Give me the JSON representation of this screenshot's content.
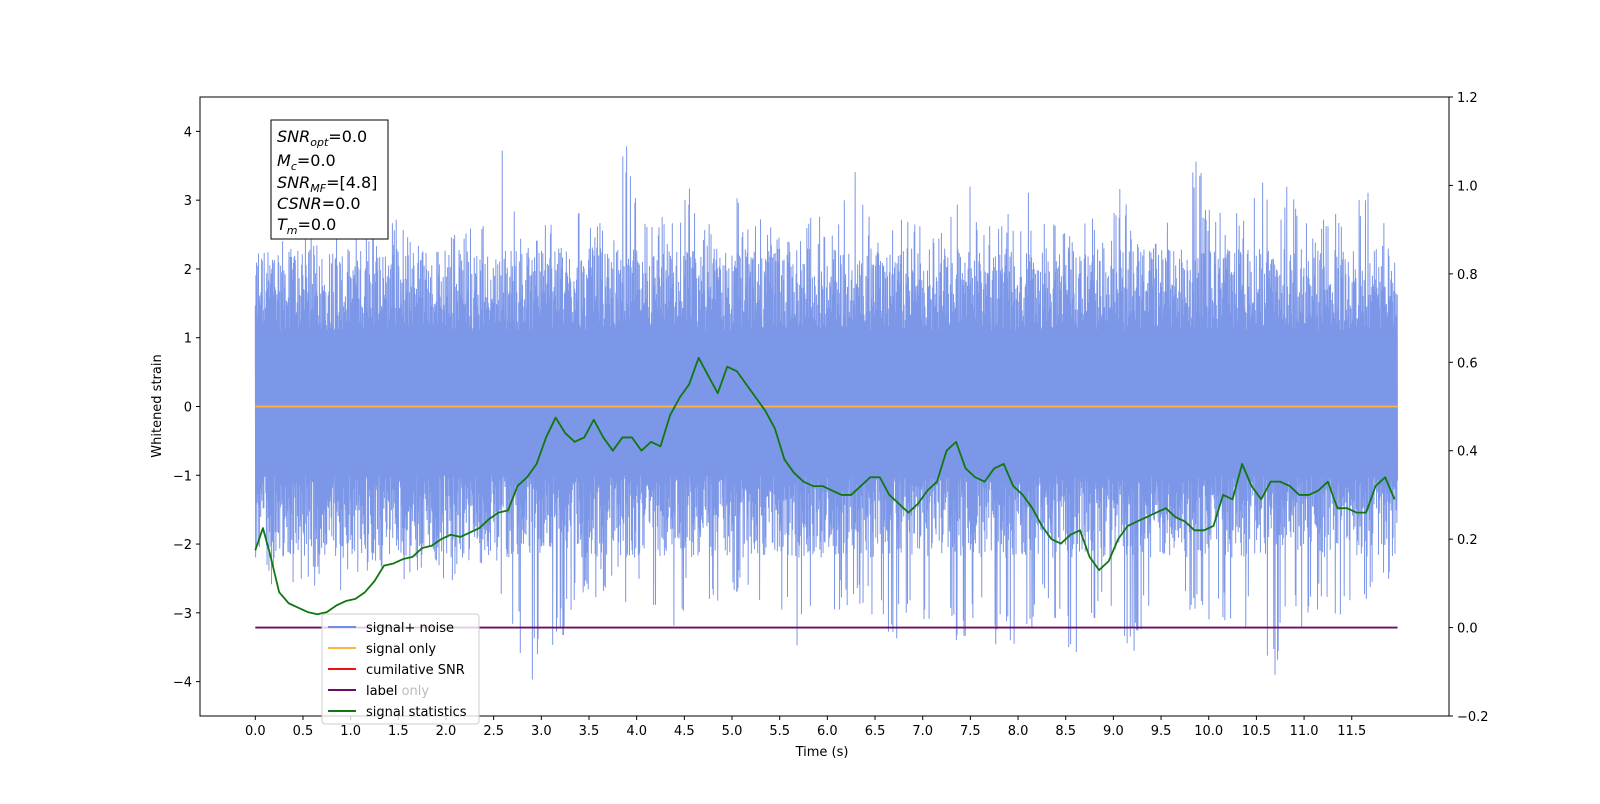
{
  "chart_data": {
    "type": "line",
    "xlabel": "Time (s)",
    "ylabel": "Whitened strain",
    "xlim": [
      -0.58,
      12.52
    ],
    "ylim": [
      -4.5,
      4.5
    ],
    "y2lim": [
      -0.2,
      1.2
    ],
    "x_ticks": [
      0.0,
      0.5,
      1.0,
      1.5,
      2.0,
      2.5,
      3.0,
      3.5,
      4.0,
      4.5,
      5.0,
      5.5,
      6.0,
      6.5,
      7.0,
      7.5,
      8.0,
      8.5,
      9.0,
      9.5,
      10.0,
      10.5,
      11.0,
      11.5
    ],
    "x_tick_labels": [
      "0.0",
      "0.5",
      "1.0",
      "1.5",
      "2.0",
      "2.5",
      "3.0",
      "3.5",
      "4.0",
      "4.5",
      "5.0",
      "5.5",
      "6.0",
      "6.5",
      "7.0",
      "7.5",
      "8.0",
      "8.5",
      "9.0",
      "9.5",
      "10.0",
      "10.5",
      "11.0",
      "11.5"
    ],
    "y_ticks": [
      -4,
      -3,
      -2,
      -1,
      0,
      1,
      2,
      3,
      4
    ],
    "y_tick_labels": [
      "−4",
      "−3",
      "−2",
      "−1",
      "0",
      "1",
      "2",
      "3",
      "4"
    ],
    "y2_ticks": [
      -0.2,
      0.0,
      0.2,
      0.4,
      0.6,
      0.8,
      1.0,
      1.2
    ],
    "y2_tick_labels": [
      "−0.2",
      "0.0",
      "0.2",
      "0.4",
      "0.6",
      "0.8",
      "1.0",
      "1.2"
    ],
    "annotation": {
      "lines": [
        {
          "main": "SNR",
          "sub": "opt",
          "value": "=0.0"
        },
        {
          "main": "M",
          "sub": "c",
          "value": "=0.0"
        },
        {
          "main": "SNR",
          "sub": "MF",
          "value": "=[4.8]"
        },
        {
          "main": "CSNR",
          "sub": "",
          "value": "=0.0"
        },
        {
          "main": "T",
          "sub": "m",
          "value": "=0.0"
        }
      ]
    },
    "legend": {
      "placement": "lower-left",
      "entries": [
        {
          "label": "signal+ noise",
          "color": "#6f8ce6"
        },
        {
          "label": "signal only",
          "color": "#ffb340"
        },
        {
          "label": "cumilative SNR",
          "color": "#ee1111"
        },
        {
          "label": "label",
          "color": "#6b0c6b"
        },
        {
          "label": "signal statistics",
          "color": "#117711"
        }
      ],
      "hidden_text": [
        "label only"
      ]
    },
    "series": [
      {
        "name": "signal+ noise",
        "axis": "left",
        "color": "#6f8ce6",
        "x_range": [
          0.0,
          11.98
        ],
        "envelope_upper": [
          2.5,
          2.3,
          2.5,
          2.6,
          2.7,
          2.5,
          2.7,
          2.9,
          2.6,
          2.8,
          2.6,
          2.5,
          2.7,
          2.5,
          2.8,
          2.9,
          3.9,
          2.7,
          2.6,
          2.8,
          2.5,
          2.9,
          2.8,
          2.6,
          4.05,
          2.7,
          2.8,
          2.8,
          3.3,
          2.9,
          2.6,
          3.1,
          2.9,
          2.7,
          2.6,
          2.7,
          2.9,
          2.8,
          2.9,
          3.6,
          2.7,
          2.5,
          3.3,
          2.8,
          2.6,
          2.9,
          3.95,
          2.8,
          2.6,
          2.9,
          3.2,
          2.8,
          2.8,
          2.7,
          3.3,
          2.7,
          3.2,
          2.8,
          2.6,
          2.7,
          2.8,
          3.7,
          2.7,
          3.0,
          2.7,
          3.5,
          2.8,
          3.3,
          3.1,
          2.7,
          3.2,
          2.8,
          3.3,
          2.7,
          2.6
        ],
        "envelope_lower": [
          -2.2,
          -2.6,
          -2.9,
          -2.5,
          -2.8,
          -3.0,
          -2.7,
          -2.5,
          -2.4,
          -2.6,
          -2.6,
          -2.3,
          -2.5,
          -2.7,
          -2.6,
          -2.6,
          -2.8,
          -3.6,
          -4.0,
          -3.6,
          -3.4,
          -2.9,
          -2.8,
          -2.7,
          -2.9,
          -2.8,
          -3.0,
          -3.6,
          -2.8,
          -2.9,
          -3.0,
          -2.7,
          -3.1,
          -3.3,
          -3.2,
          -3.5,
          -3.4,
          -3.3,
          -3.0,
          -2.9,
          -3.1,
          -3.5,
          -3.3,
          -3.4,
          -3.0,
          -3.2,
          -3.8,
          -3.0,
          -3.6,
          -3.5,
          -3.3,
          -3.0,
          -3.1,
          -3.7,
          -3.2,
          -3.3,
          -3.3,
          -3.6,
          -3.0,
          -3.2,
          -3.1,
          -3.2,
          -3.6,
          -3.1,
          -3.3,
          -3.2,
          -4.1,
          -3.2,
          -3.4,
          -2.9,
          -3.2,
          -3.0,
          -2.9,
          -2.7,
          -2.6
        ]
      },
      {
        "name": "signal only",
        "axis": "left",
        "color": "#ffb340",
        "x": [
          0.0,
          11.98
        ],
        "y": [
          0.0,
          0.0
        ]
      },
      {
        "name": "label",
        "axis": "right",
        "color": "#6b0c6b",
        "x": [
          0.0,
          11.98
        ],
        "y": [
          0.0,
          0.0
        ]
      },
      {
        "name": "signal statistics",
        "axis": "right",
        "color": "#117711",
        "x": [
          0.0,
          0.08,
          0.15,
          0.25,
          0.35,
          0.45,
          0.55,
          0.65,
          0.75,
          0.85,
          0.95,
          1.05,
          1.15,
          1.25,
          1.35,
          1.45,
          1.55,
          1.65,
          1.75,
          1.85,
          1.95,
          2.05,
          2.15,
          2.25,
          2.35,
          2.45,
          2.55,
          2.65,
          2.75,
          2.85,
          2.95,
          3.05,
          3.15,
          3.25,
          3.35,
          3.45,
          3.55,
          3.65,
          3.75,
          3.85,
          3.95,
          4.05,
          4.15,
          4.25,
          4.35,
          4.45,
          4.55,
          4.65,
          4.75,
          4.85,
          4.95,
          5.05,
          5.15,
          5.25,
          5.35,
          5.45,
          5.55,
          5.65,
          5.75,
          5.85,
          5.95,
          6.05,
          6.15,
          6.25,
          6.35,
          6.45,
          6.55,
          6.65,
          6.75,
          6.85,
          6.95,
          7.05,
          7.15,
          7.25,
          7.35,
          7.45,
          7.55,
          7.65,
          7.75,
          7.85,
          7.95,
          8.05,
          8.15,
          8.25,
          8.35,
          8.45,
          8.55,
          8.65,
          8.75,
          8.85,
          8.95,
          9.05,
          9.15,
          9.25,
          9.35,
          9.45,
          9.55,
          9.65,
          9.75,
          9.85,
          9.95,
          10.05,
          10.15,
          10.25,
          10.35,
          10.45,
          10.55,
          10.65,
          10.75,
          10.85,
          10.95,
          11.05,
          11.15,
          11.25,
          11.35,
          11.45,
          11.55,
          11.65,
          11.75,
          11.85,
          11.95
        ],
        "y": [
          0.175,
          0.225,
          0.17,
          0.08,
          0.055,
          0.045,
          0.035,
          0.03,
          0.035,
          0.05,
          0.06,
          0.065,
          0.08,
          0.105,
          0.14,
          0.145,
          0.155,
          0.16,
          0.18,
          0.185,
          0.2,
          0.21,
          0.205,
          0.215,
          0.225,
          0.245,
          0.26,
          0.265,
          0.32,
          0.34,
          0.37,
          0.43,
          0.475,
          0.44,
          0.42,
          0.43,
          0.47,
          0.43,
          0.4,
          0.43,
          0.43,
          0.4,
          0.42,
          0.41,
          0.48,
          0.52,
          0.55,
          0.61,
          0.57,
          0.53,
          0.59,
          0.58,
          0.55,
          0.52,
          0.49,
          0.45,
          0.38,
          0.35,
          0.33,
          0.32,
          0.32,
          0.31,
          0.3,
          0.3,
          0.32,
          0.34,
          0.34,
          0.3,
          0.28,
          0.26,
          0.28,
          0.31,
          0.33,
          0.4,
          0.42,
          0.36,
          0.34,
          0.33,
          0.36,
          0.37,
          0.32,
          0.3,
          0.27,
          0.23,
          0.2,
          0.19,
          0.21,
          0.22,
          0.16,
          0.13,
          0.15,
          0.2,
          0.23,
          0.24,
          0.25,
          0.26,
          0.27,
          0.25,
          0.24,
          0.22,
          0.22,
          0.23,
          0.3,
          0.29,
          0.37,
          0.32,
          0.29,
          0.33,
          0.33,
          0.32,
          0.3,
          0.3,
          0.31,
          0.33,
          0.27,
          0.27,
          0.26,
          0.26,
          0.32,
          0.34,
          0.29
        ]
      }
    ],
    "grid": false
  }
}
